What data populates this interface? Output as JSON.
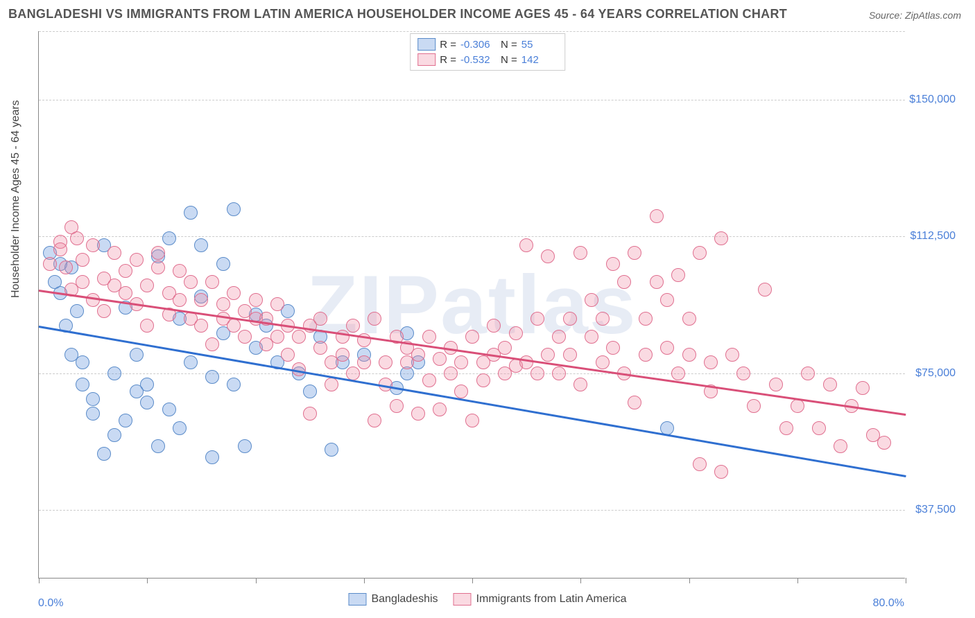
{
  "title": "BANGLADESHI VS IMMIGRANTS FROM LATIN AMERICA HOUSEHOLDER INCOME AGES 45 - 64 YEARS CORRELATION CHART",
  "source_label": "Source: ZipAtlas.com",
  "watermark": "ZIPatlas",
  "ylabel": "Householder Income Ages 45 - 64 years",
  "xlim": [
    0,
    80
  ],
  "ylim": [
    18750,
    168750
  ],
  "xticks_pct": [
    0,
    10,
    20,
    30,
    40,
    50,
    60,
    70,
    80
  ],
  "ytick_labels": [
    "$150,000",
    "$112,500",
    "$75,000",
    "$37,500"
  ],
  "ytick_values": [
    150000,
    112500,
    75000,
    37500
  ],
  "xtick_left": "0.0%",
  "xtick_right": "80.0%",
  "colors": {
    "blue_fill": "rgba(100,150,220,0.35)",
    "blue_stroke": "#5a8bc9",
    "pink_fill": "rgba(240,140,165,0.32)",
    "pink_stroke": "#e06f8f",
    "blue_line": "#2f6fd0",
    "pink_line": "#d94f78",
    "grid": "#cccccc",
    "axis": "#888888",
    "title_color": "#555555",
    "label_color": "#444444",
    "value_color": "#4a7fd8",
    "bg": "#ffffff"
  },
  "marker_radius": 10,
  "line_width": 2.5,
  "series": [
    {
      "name": "Bangladeshis",
      "key": "blue",
      "R": "-0.306",
      "N": "55",
      "trend": {
        "x1": 0,
        "y1": 88000,
        "x2": 80,
        "y2": 47000
      },
      "points": [
        [
          1,
          108000
        ],
        [
          1.5,
          100000
        ],
        [
          2,
          105000
        ],
        [
          2,
          97000
        ],
        [
          2.5,
          88000
        ],
        [
          3,
          80000
        ],
        [
          3,
          104000
        ],
        [
          3.5,
          92000
        ],
        [
          4,
          78000
        ],
        [
          4,
          72000
        ],
        [
          5,
          68000
        ],
        [
          5,
          64000
        ],
        [
          6,
          53000
        ],
        [
          6,
          110000
        ],
        [
          7,
          58000
        ],
        [
          7,
          75000
        ],
        [
          8,
          62000
        ],
        [
          8,
          93000
        ],
        [
          9,
          80000
        ],
        [
          9,
          70000
        ],
        [
          10,
          72000
        ],
        [
          10,
          67000
        ],
        [
          11,
          107000
        ],
        [
          11,
          55000
        ],
        [
          12,
          112000
        ],
        [
          12,
          65000
        ],
        [
          13,
          90000
        ],
        [
          13,
          60000
        ],
        [
          14,
          78000
        ],
        [
          14,
          119000
        ],
        [
          15,
          110000
        ],
        [
          15,
          96000
        ],
        [
          16,
          74000
        ],
        [
          16,
          52000
        ],
        [
          17,
          86000
        ],
        [
          17,
          105000
        ],
        [
          18,
          120000
        ],
        [
          18,
          72000
        ],
        [
          19,
          55000
        ],
        [
          20,
          91000
        ],
        [
          20,
          82000
        ],
        [
          21,
          88000
        ],
        [
          22,
          78000
        ],
        [
          23,
          92000
        ],
        [
          24,
          75000
        ],
        [
          25,
          70000
        ],
        [
          26,
          85000
        ],
        [
          27,
          54000
        ],
        [
          28,
          78000
        ],
        [
          30,
          80000
        ],
        [
          33,
          71000
        ],
        [
          34,
          75000
        ],
        [
          34,
          86000
        ],
        [
          35,
          78000
        ],
        [
          58,
          60000
        ]
      ]
    },
    {
      "name": "Immigrants from Latin America",
      "key": "pink",
      "R": "-0.532",
      "N": "142",
      "trend": {
        "x1": 0,
        "y1": 98000,
        "x2": 80,
        "y2": 64000
      },
      "points": [
        [
          1,
          105000
        ],
        [
          2,
          111000
        ],
        [
          2,
          109000
        ],
        [
          2.5,
          104000
        ],
        [
          3,
          98000
        ],
        [
          3,
          115000
        ],
        [
          3.5,
          112000
        ],
        [
          4,
          106000
        ],
        [
          4,
          100000
        ],
        [
          5,
          110000
        ],
        [
          5,
          95000
        ],
        [
          6,
          101000
        ],
        [
          6,
          92000
        ],
        [
          7,
          99000
        ],
        [
          7,
          108000
        ],
        [
          8,
          97000
        ],
        [
          8,
          103000
        ],
        [
          9,
          106000
        ],
        [
          9,
          94000
        ],
        [
          10,
          99000
        ],
        [
          10,
          88000
        ],
        [
          11,
          104000
        ],
        [
          11,
          108000
        ],
        [
          12,
          97000
        ],
        [
          12,
          91000
        ],
        [
          13,
          95000
        ],
        [
          13,
          103000
        ],
        [
          14,
          90000
        ],
        [
          14,
          100000
        ],
        [
          15,
          95000
        ],
        [
          15,
          88000
        ],
        [
          16,
          100000
        ],
        [
          16,
          83000
        ],
        [
          17,
          94000
        ],
        [
          17,
          90000
        ],
        [
          18,
          88000
        ],
        [
          18,
          97000
        ],
        [
          19,
          85000
        ],
        [
          19,
          92000
        ],
        [
          20,
          90000
        ],
        [
          20,
          95000
        ],
        [
          21,
          83000
        ],
        [
          21,
          90000
        ],
        [
          22,
          85000
        ],
        [
          22,
          94000
        ],
        [
          23,
          88000
        ],
        [
          23,
          80000
        ],
        [
          24,
          85000
        ],
        [
          24,
          76000
        ],
        [
          25,
          88000
        ],
        [
          25,
          64000
        ],
        [
          26,
          82000
        ],
        [
          26,
          90000
        ],
        [
          27,
          78000
        ],
        [
          27,
          72000
        ],
        [
          28,
          80000
        ],
        [
          28,
          85000
        ],
        [
          29,
          75000
        ],
        [
          29,
          88000
        ],
        [
          30,
          78000
        ],
        [
          30,
          84000
        ],
        [
          31,
          90000
        ],
        [
          31,
          62000
        ],
        [
          32,
          78000
        ],
        [
          32,
          72000
        ],
        [
          33,
          85000
        ],
        [
          33,
          66000
        ],
        [
          34,
          78000
        ],
        [
          34,
          82000
        ],
        [
          35,
          64000
        ],
        [
          35,
          80000
        ],
        [
          36,
          85000
        ],
        [
          36,
          73000
        ],
        [
          37,
          65000
        ],
        [
          37,
          79000
        ],
        [
          38,
          75000
        ],
        [
          38,
          82000
        ],
        [
          39,
          78000
        ],
        [
          39,
          70000
        ],
        [
          40,
          62000
        ],
        [
          40,
          85000
        ],
        [
          41,
          78000
        ],
        [
          41,
          73000
        ],
        [
          42,
          80000
        ],
        [
          42,
          88000
        ],
        [
          43,
          75000
        ],
        [
          43,
          82000
        ],
        [
          44,
          77000
        ],
        [
          44,
          86000
        ],
        [
          45,
          78000
        ],
        [
          45,
          110000
        ],
        [
          46,
          75000
        ],
        [
          46,
          90000
        ],
        [
          47,
          80000
        ],
        [
          47,
          107000
        ],
        [
          48,
          85000
        ],
        [
          48,
          75000
        ],
        [
          49,
          90000
        ],
        [
          49,
          80000
        ],
        [
          50,
          108000
        ],
        [
          50,
          72000
        ],
        [
          51,
          85000
        ],
        [
          51,
          95000
        ],
        [
          52,
          90000
        ],
        [
          52,
          78000
        ],
        [
          53,
          105000
        ],
        [
          53,
          82000
        ],
        [
          54,
          100000
        ],
        [
          54,
          75000
        ],
        [
          55,
          108000
        ],
        [
          55,
          67000
        ],
        [
          56,
          90000
        ],
        [
          56,
          80000
        ],
        [
          57,
          100000
        ],
        [
          57,
          118000
        ],
        [
          58,
          82000
        ],
        [
          58,
          95000
        ],
        [
          59,
          102000
        ],
        [
          59,
          75000
        ],
        [
          60,
          80000
        ],
        [
          60,
          90000
        ],
        [
          61,
          50000
        ],
        [
          61,
          108000
        ],
        [
          62,
          70000
        ],
        [
          62,
          78000
        ],
        [
          63,
          112000
        ],
        [
          63,
          48000
        ],
        [
          64,
          80000
        ],
        [
          65,
          75000
        ],
        [
          66,
          66000
        ],
        [
          67,
          98000
        ],
        [
          68,
          72000
        ],
        [
          69,
          60000
        ],
        [
          70,
          66000
        ],
        [
          71,
          75000
        ],
        [
          72,
          60000
        ],
        [
          73,
          72000
        ],
        [
          74,
          55000
        ],
        [
          75,
          66000
        ],
        [
          76,
          71000
        ],
        [
          77,
          58000
        ],
        [
          78,
          56000
        ]
      ]
    }
  ]
}
